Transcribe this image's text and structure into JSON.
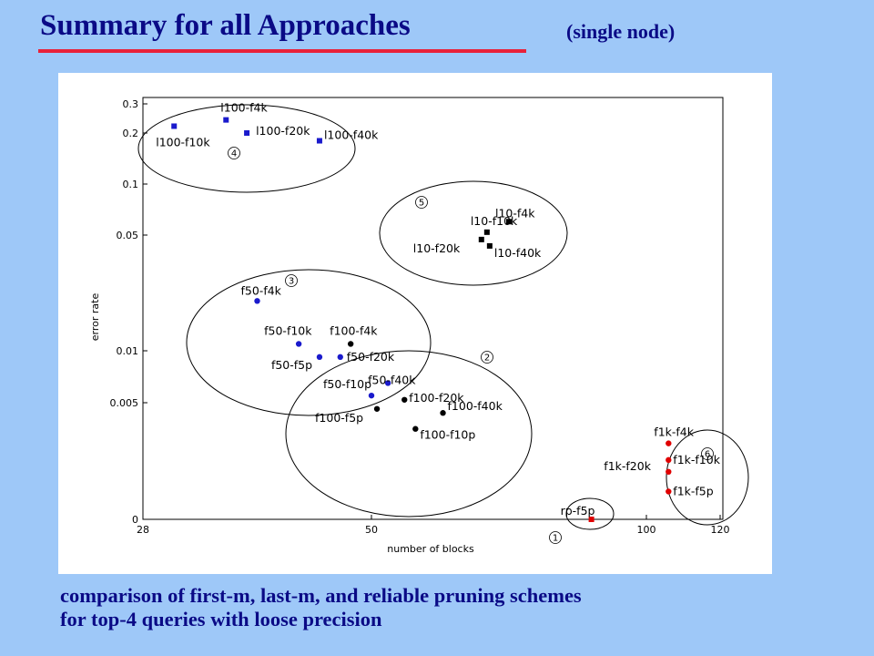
{
  "slide": {
    "title": "Summary for all Approaches",
    "subtitle": "(single node)",
    "caption_lines": [
      "comparison of first-m, last-m, and reliable pruning schemes",
      "for top-4 queries with loose precision"
    ]
  },
  "chart_data": {
    "type": "scatter",
    "title": "",
    "xlabel": "number of blocks",
    "ylabel": "error rate",
    "x_ticks": [
      28,
      50,
      100,
      120
    ],
    "y_ticks": [
      {
        "value": 0,
        "label": "0"
      },
      {
        "value": 0.005,
        "label": "0.005"
      },
      {
        "value": 0.01,
        "label": "0.01"
      },
      {
        "value": 0.05,
        "label": "0.05"
      },
      {
        "value": 0.1,
        "label": "0.1"
      },
      {
        "value": 0.2,
        "label": "0.2"
      },
      {
        "value": 0.3,
        "label": "0.3"
      }
    ],
    "series_colors": {
      "blue": "#1a1acc",
      "black": "#000000",
      "red": "#e00000"
    },
    "groups": [
      {
        "id": "4",
        "label": "4"
      },
      {
        "id": "5",
        "label": "5"
      },
      {
        "id": "3",
        "label": "3"
      },
      {
        "id": "2",
        "label": "2"
      },
      {
        "id": "6",
        "label": "6"
      },
      {
        "id": "1",
        "label": "1"
      }
    ],
    "points": [
      {
        "label": "l100-f10k",
        "x": 31,
        "y": 0.22,
        "color": "blue",
        "marker": "square",
        "group": "4"
      },
      {
        "label": "l100-f4k",
        "x": 36,
        "y": 0.24,
        "color": "blue",
        "marker": "square",
        "group": "4"
      },
      {
        "label": "l100-f20k",
        "x": 38,
        "y": 0.2,
        "color": "blue",
        "marker": "square",
        "group": "4"
      },
      {
        "label": "l100-f40k",
        "x": 45,
        "y": 0.18,
        "color": "blue",
        "marker": "square",
        "group": "4"
      },
      {
        "label": "l10-f4k",
        "x": 75,
        "y": 0.06,
        "color": "black",
        "marker": "square",
        "group": "5"
      },
      {
        "label": "l10-f10k",
        "x": 71,
        "y": 0.052,
        "color": "black",
        "marker": "square",
        "group": "5"
      },
      {
        "label": "l10-f20k",
        "x": 70,
        "y": 0.047,
        "color": "black",
        "marker": "square",
        "group": "5"
      },
      {
        "label": "l10-f40k",
        "x": 71.5,
        "y": 0.043,
        "color": "black",
        "marker": "square",
        "group": "5"
      },
      {
        "label": "f50-f4k",
        "x": 39,
        "y": 0.02,
        "color": "blue",
        "marker": "circle",
        "group": "3"
      },
      {
        "label": "f50-f10k",
        "x": 43,
        "y": 0.011,
        "color": "blue",
        "marker": "circle",
        "group": "3"
      },
      {
        "label": "f50-f5p",
        "x": 45,
        "y": 0.0092,
        "color": "blue",
        "marker": "circle",
        "group": "3"
      },
      {
        "label": "f50-f20k",
        "x": 47,
        "y": 0.0092,
        "color": "blue",
        "marker": "circle",
        "group": "3"
      },
      {
        "label": "f50-f10p",
        "x": 50,
        "y": 0.0055,
        "color": "blue",
        "marker": "circle",
        "group": "3"
      },
      {
        "label": "f50-f40k",
        "x": 53,
        "y": 0.0065,
        "color": "blue",
        "marker": "circle",
        "group": "3"
      },
      {
        "label": "f100-f4k",
        "x": 48,
        "y": 0.011,
        "color": "black",
        "marker": "circle",
        "group": "2"
      },
      {
        "label": "f100-f5p",
        "x": 51,
        "y": 0.0045,
        "color": "black",
        "marker": "circle",
        "group": "2"
      },
      {
        "label": "f100-f20k",
        "x": 56,
        "y": 0.0052,
        "color": "black",
        "marker": "circle",
        "group": "2"
      },
      {
        "label": "f100-f40k",
        "x": 63,
        "y": 0.0042,
        "color": "black",
        "marker": "circle",
        "group": "2"
      },
      {
        "label": "f100-f10p",
        "x": 58,
        "y": 0.0032,
        "color": "black",
        "marker": "circle",
        "group": "2"
      },
      {
        "label": "f1k-f4k",
        "x": 106,
        "y": 0.0025,
        "color": "red",
        "marker": "circle",
        "group": "6"
      },
      {
        "label": "f1k-f10k",
        "x": 106,
        "y": 0.0019,
        "color": "red",
        "marker": "circle",
        "group": "6"
      },
      {
        "label": "f1k-f20k",
        "x": 106,
        "y": 0.0016,
        "color": "red",
        "marker": "circle",
        "group": "6"
      },
      {
        "label": "f1k-f5p",
        "x": 106,
        "y": 0.0012,
        "color": "red",
        "marker": "circle",
        "group": "6"
      },
      {
        "label": "rp-f5p",
        "x": 90,
        "y": 0,
        "color": "red",
        "marker": "square",
        "group": "1"
      }
    ]
  }
}
